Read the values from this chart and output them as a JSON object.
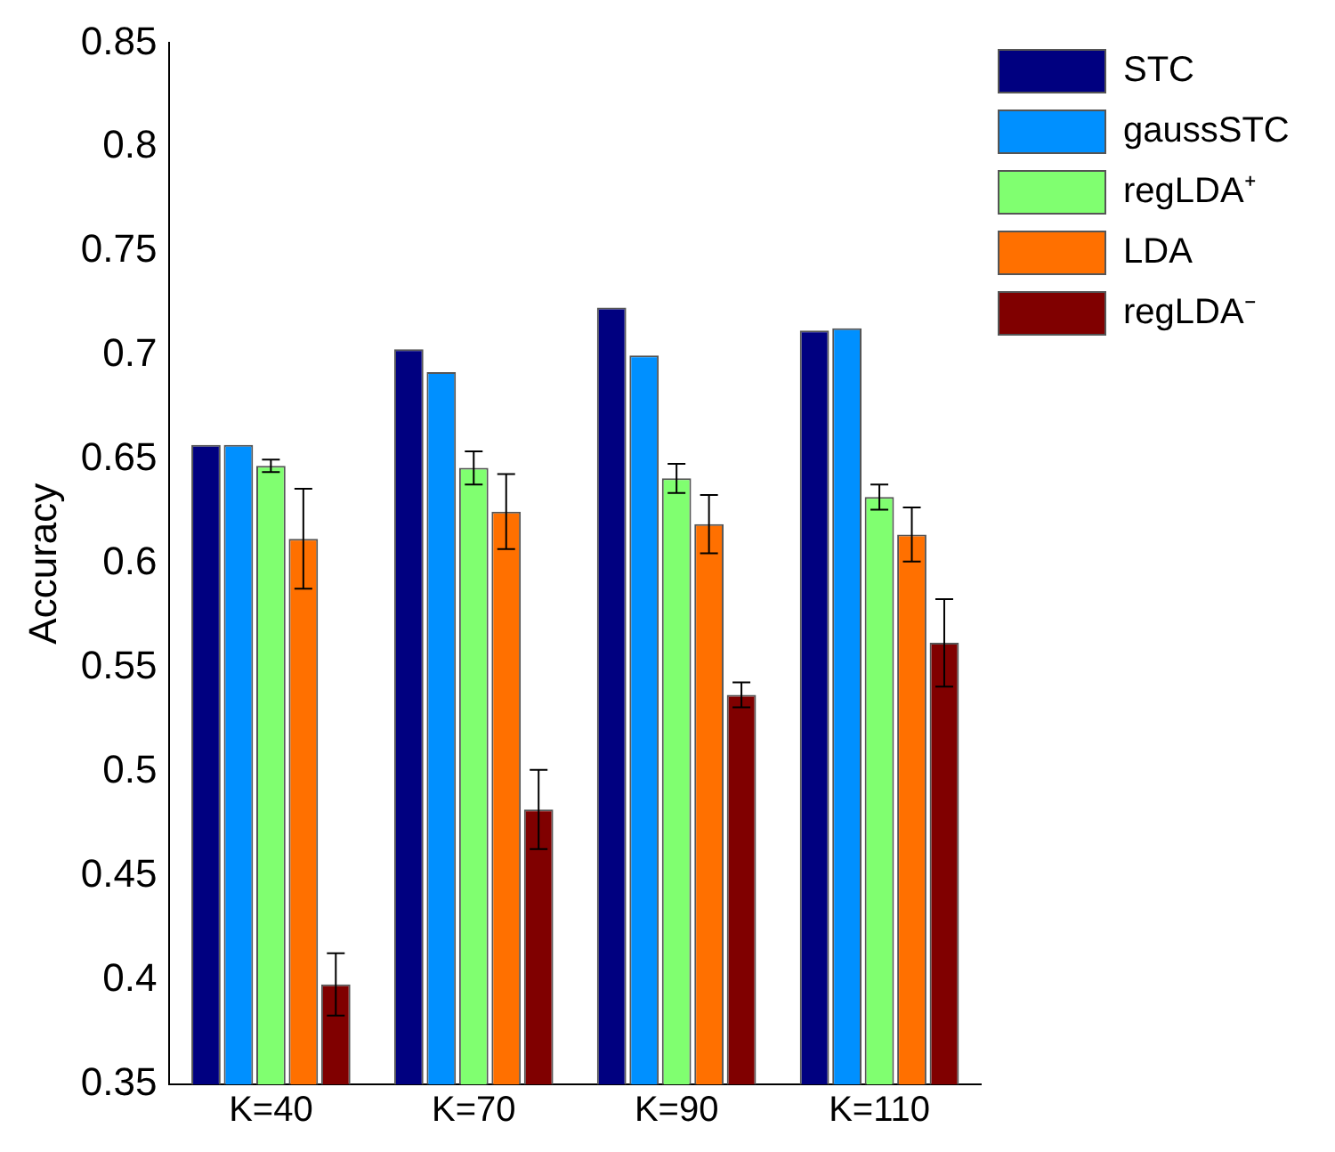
{
  "chart_data": {
    "type": "bar",
    "ylabel": "Accuracy",
    "categories": [
      "K=40",
      "K=70",
      "K=90",
      "K=110"
    ],
    "series": [
      {
        "name": "STC",
        "color": "#000080",
        "values": [
          0.657,
          0.703,
          0.723,
          0.712
        ]
      },
      {
        "name": "gaussSTC",
        "color": "#0090ff",
        "values": [
          0.657,
          0.692,
          0.7,
          0.713
        ]
      },
      {
        "name": "regLDA⁺",
        "color": "#80ff70",
        "values": [
          0.647,
          0.646,
          0.641,
          0.632
        ],
        "errors": [
          0.003,
          0.008,
          0.007,
          0.006
        ]
      },
      {
        "name": "LDA",
        "color": "#ff7000",
        "values": [
          0.612,
          0.625,
          0.619,
          0.614
        ],
        "errors": [
          0.024,
          0.018,
          0.014,
          0.013
        ]
      },
      {
        "name": "regLDA⁻",
        "color": "#800000",
        "values": [
          0.398,
          0.482,
          0.537,
          0.562
        ],
        "errors": [
          0.015,
          0.019,
          0.006,
          0.021
        ]
      }
    ],
    "ylim": [
      0.35,
      0.85
    ],
    "yticks": [
      0.35,
      0.4,
      0.45,
      0.5,
      0.55,
      0.6,
      0.65,
      0.7,
      0.75,
      0.8,
      0.85
    ],
    "grid": false,
    "legend": "top right"
  }
}
